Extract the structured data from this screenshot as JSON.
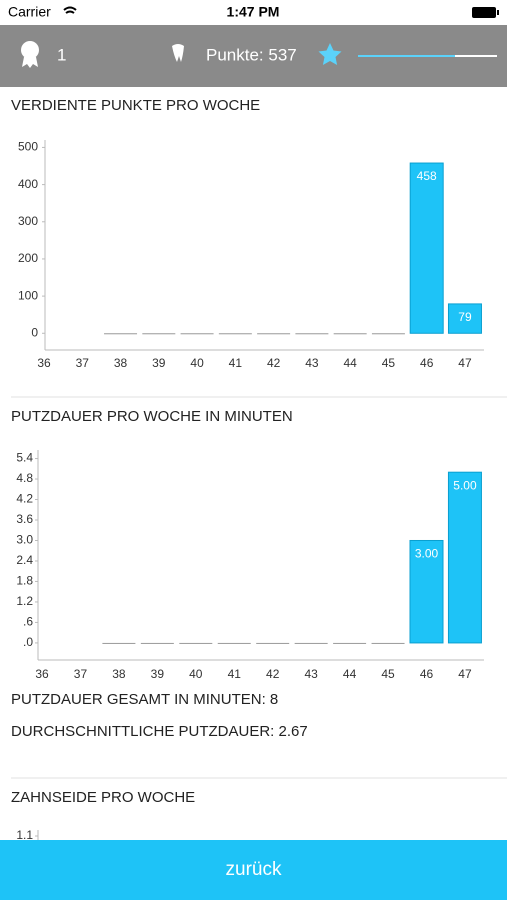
{
  "status_bar": {
    "carrier": "Carrier",
    "time": "1:47 PM"
  },
  "header": {
    "level": "1",
    "points": "Punkte: 537"
  },
  "chart_data": [
    {
      "type": "bar",
      "title": "VERDIENTE PUNKTE PRO WOCHE",
      "categories": [
        "36",
        "37",
        "38",
        "39",
        "40",
        "41",
        "42",
        "43",
        "44",
        "45",
        "46",
        "47"
      ],
      "values": [
        null,
        null,
        0,
        0,
        0,
        0,
        0,
        0,
        0,
        0,
        458,
        79
      ],
      "color": "#1ec3f7",
      "ylim": [
        -45,
        520
      ],
      "yticks": [
        0,
        100,
        200,
        300,
        400,
        500
      ]
    },
    {
      "type": "bar",
      "title": "PUTZDAUER PRO WOCHE IN MINUTEN",
      "categories": [
        "36",
        "37",
        "38",
        "39",
        "40",
        "41",
        "42",
        "43",
        "44",
        "45",
        "46",
        "47"
      ],
      "values": [
        null,
        null,
        0,
        0,
        0,
        0,
        0,
        0,
        0,
        0,
        3,
        5
      ],
      "value_labels": [
        null,
        null,
        null,
        null,
        null,
        null,
        null,
        null,
        null,
        null,
        "3.00",
        "5.00"
      ],
      "color": "#1ec3f7",
      "ylim": [
        -0.5,
        5.65
      ],
      "yticks": [
        {
          "value": 0,
          "label": ".0"
        },
        {
          "value": 0.6,
          "label": ".6"
        },
        1.2,
        1.8,
        2.4,
        {
          "value": 3,
          "label": "3.0"
        },
        3.6,
        4.2,
        4.8,
        5.4
      ]
    },
    {
      "type": "bar",
      "title": "ZAHNSEIDE PRO WOCHE",
      "ylim": [
        0,
        1.2
      ],
      "yticks": [
        1.1
      ]
    }
  ],
  "stats": [
    "PUTZDAUER GESAMT IN MINUTEN: 8",
    "DURCHSCHNITTLICHE PUTZDAUER: 2.67"
  ],
  "footer": {
    "button": "zurück"
  }
}
